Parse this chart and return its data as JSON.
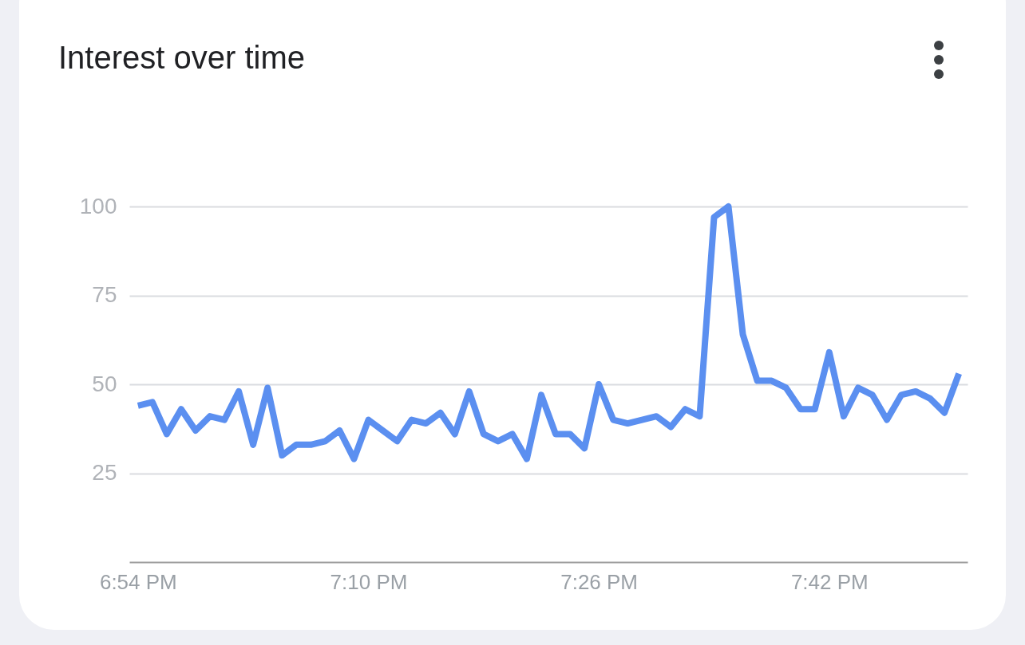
{
  "chart_data": {
    "type": "line",
    "title": "Interest over time",
    "x": [
      18.9,
      18.9167,
      18.9333,
      18.95,
      18.9667,
      18.9833,
      19.0,
      19.0167,
      19.0333,
      19.05,
      19.0667,
      19.0833,
      19.1,
      19.1167,
      19.1333,
      19.15,
      19.1667,
      19.1833,
      19.2,
      19.2167,
      19.2333,
      19.25,
      19.2667,
      19.2833,
      19.3,
      19.3167,
      19.3333,
      19.35,
      19.3667,
      19.3833,
      19.4,
      19.4167,
      19.4333,
      19.45,
      19.4667,
      19.4833,
      19.5,
      19.5167,
      19.5333,
      19.55,
      19.5667,
      19.5833,
      19.6,
      19.6167,
      19.6333,
      19.65,
      19.6667,
      19.6833,
      19.7,
      19.7167,
      19.7333,
      19.75,
      19.7667,
      19.7833,
      19.8,
      19.8167,
      19.8333,
      19.85
    ],
    "series": [
      {
        "color": "#5b8ff0",
        "values": [
          44,
          45,
          36,
          43,
          37,
          41,
          40,
          48,
          33,
          49,
          30,
          33,
          33,
          34,
          37,
          29,
          40,
          37,
          34,
          40,
          39,
          42,
          36,
          48,
          36,
          34,
          36,
          29,
          47,
          36,
          36,
          32,
          50,
          40,
          39,
          40,
          41,
          38,
          43,
          41,
          97,
          100,
          64,
          51,
          51,
          49,
          43,
          43,
          59,
          41,
          49,
          47,
          40,
          47,
          48,
          46,
          42,
          53
        ]
      }
    ],
    "xlim": [
      18.89,
      19.86
    ],
    "xticks": [
      {
        "value": 18.9,
        "label": "6:54 PM"
      },
      {
        "value": 19.1667,
        "label": "7:10 PM"
      },
      {
        "value": 19.4333,
        "label": "7:26 PM"
      },
      {
        "value": 19.7,
        "label": "7:42 PM"
      }
    ],
    "ylim": [
      0,
      100
    ],
    "yticks": [
      25,
      50,
      75,
      100
    ],
    "grid": "y",
    "legend": false,
    "marker": "none",
    "line_style": "solid"
  }
}
